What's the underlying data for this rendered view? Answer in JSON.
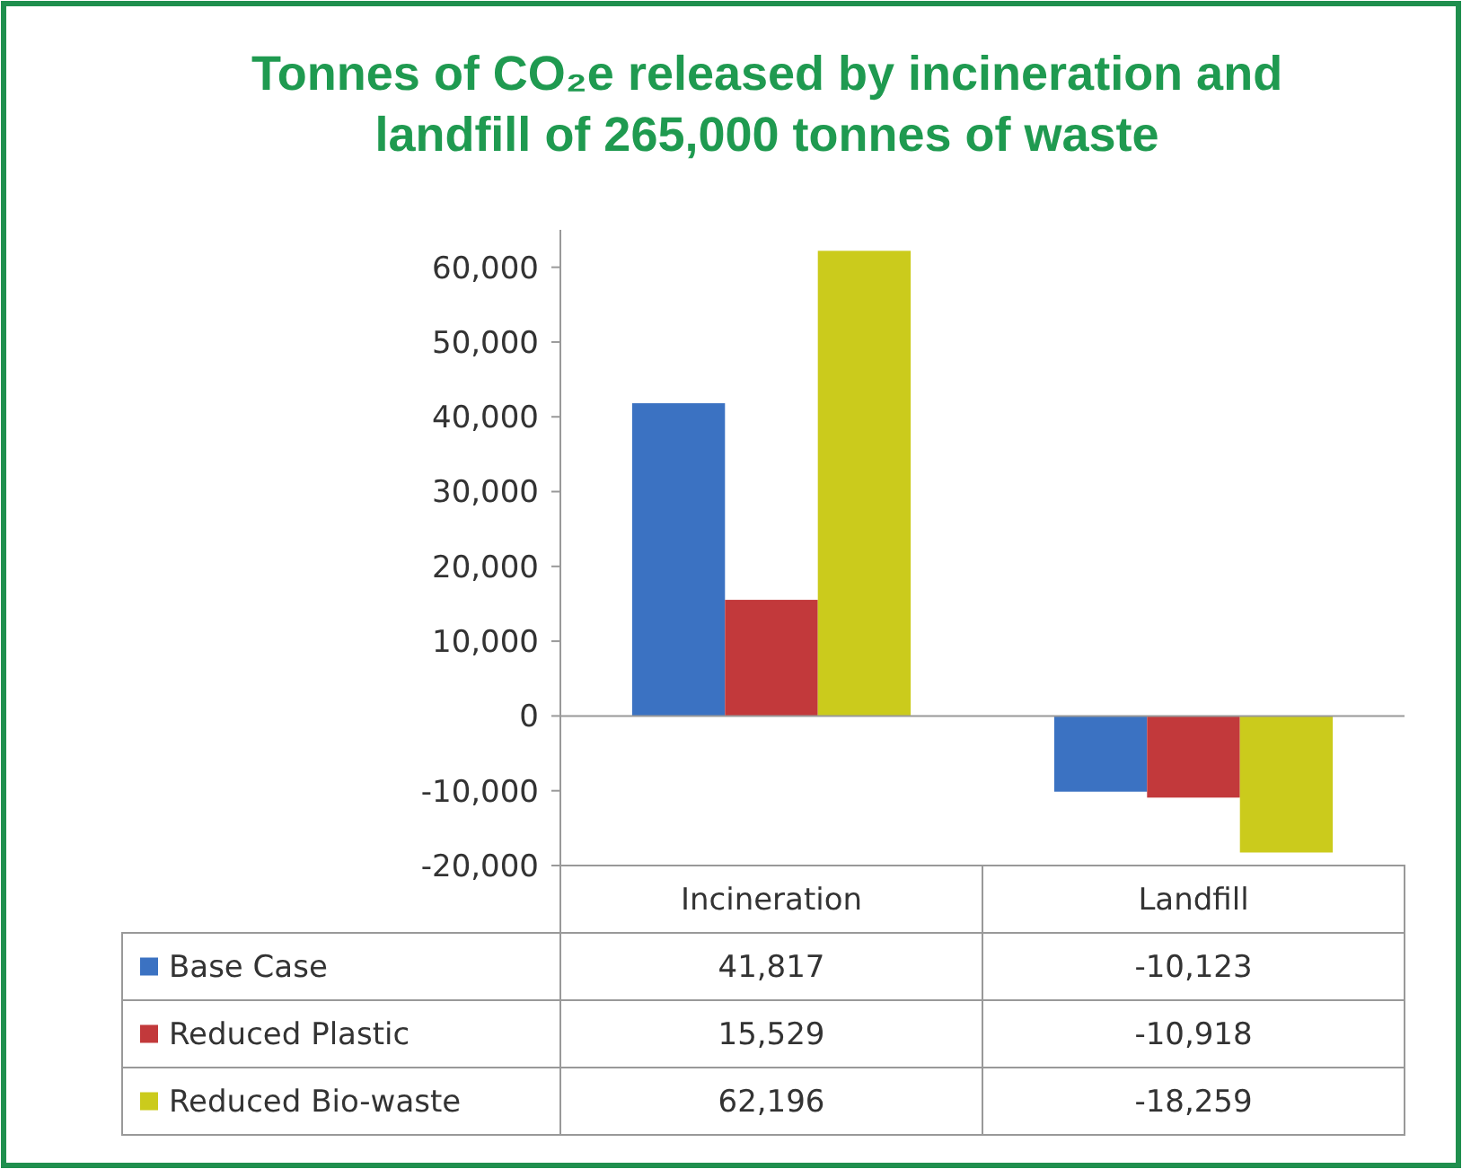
{
  "chart_data": {
    "type": "bar",
    "title": "Tonnes of CO₂e released by incineration and landfill of 265,000 tonnes of waste",
    "categories": [
      "Incineration",
      "Landfill"
    ],
    "series": [
      {
        "name": "Base Case",
        "color": "#3b72c2",
        "values": [
          41817,
          -10123
        ],
        "value_labels": [
          "41,817",
          "-10,123"
        ]
      },
      {
        "name": "Reduced Plastic",
        "color": "#c2393b",
        "values": [
          15529,
          -10918
        ],
        "value_labels": [
          "15,529",
          "-10,918"
        ]
      },
      {
        "name": "Reduced Bio-waste",
        "color": "#cbcb1c",
        "values": [
          62196,
          -18259
        ],
        "value_labels": [
          "62,196",
          "-18,259"
        ]
      }
    ],
    "ylim": [
      -20000,
      65000
    ],
    "yticks": [
      {
        "value": -20000,
        "label": "-20,000"
      },
      {
        "value": -10000,
        "label": "-10,000"
      },
      0,
      {
        "value": 10000,
        "label": "10,000"
      },
      {
        "value": 20000,
        "label": "20,000"
      },
      {
        "value": 30000,
        "label": "30,000"
      },
      {
        "value": 40000,
        "label": "40,000"
      },
      {
        "value": 50000,
        "label": "50,000"
      },
      {
        "value": 60000,
        "label": "60,000"
      }
    ],
    "legend": "bottom left"
  }
}
